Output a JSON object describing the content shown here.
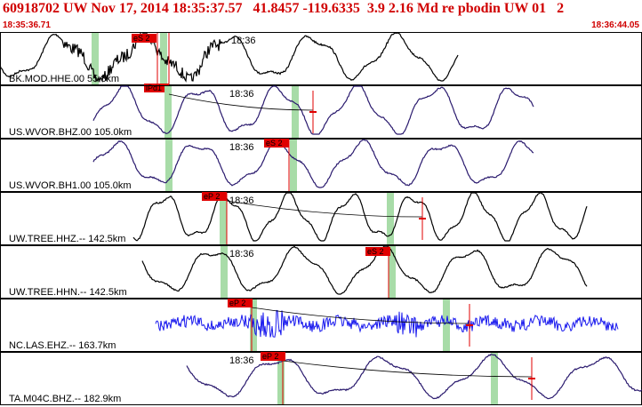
{
  "header": {
    "title": "60918702 UW Nov 17, 2014 18:35:37.57   41.8457 -119.6335  3.9 2.16 Md re pbodin UW 01   2",
    "time_start": "18:35:36.71",
    "time_end": "18:36:44.05"
  },
  "colors": {
    "title_red": "#d00000",
    "pick_red": "#e00000",
    "window_green": "#a8dca8"
  },
  "traces": [
    {
      "station": "BK.MOD.HHE.00 55.8km",
      "time_label": "18:36",
      "picks": [
        {
          "label": "eS 2"
        },
        {
          "label": "iPd1"
        }
      ],
      "trace_color": "#000000"
    },
    {
      "station": "US.WVOR.BHZ.00 105.0km",
      "time_label": "18:36",
      "picks": [],
      "trace_color": "#2a1a6e"
    },
    {
      "station": "US.WVOR.BH1.00 105.0km",
      "time_label": "18:36",
      "picks": [
        {
          "label": "eS 2"
        }
      ],
      "trace_color": "#2a1a6e"
    },
    {
      "station": "UW.TREE.HHZ.-- 142.5km",
      "time_label": "18:36",
      "picks": [
        {
          "label": "eP 2"
        }
      ],
      "trace_color": "#000000"
    },
    {
      "station": "UW.TREE.HHN.-- 142.5km",
      "time_label": "18:36",
      "picks": [
        {
          "label": "eS 2"
        }
      ],
      "trace_color": "#000000"
    },
    {
      "station": "NC.LAS.EHZ.-- 163.7km",
      "time_label": "18:36",
      "picks": [
        {
          "label": "eP 2"
        }
      ],
      "trace_color": "#1a1aee"
    },
    {
      "station": "TA.M04C.BHZ.-- 182.9km",
      "time_label": "18:36",
      "picks": [
        {
          "label": "eP 2"
        }
      ],
      "trace_color": "#2a1a6e"
    }
  ]
}
